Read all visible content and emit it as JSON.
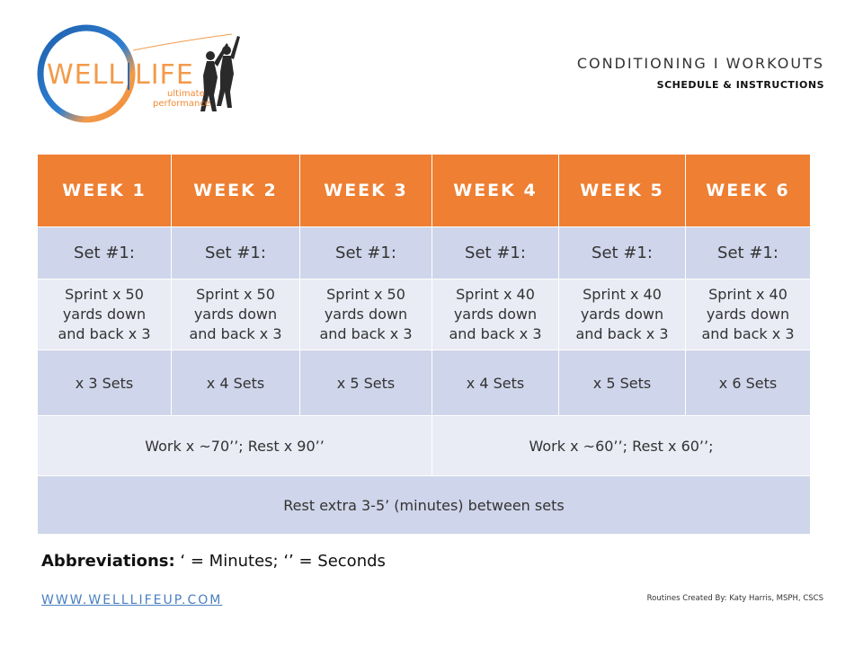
{
  "logo": {
    "word1": "WELL",
    "word2": "LIFE",
    "tag1": "ultimate",
    "tag2": "performance",
    "ring_colors": [
      "#1f5fae",
      "#f39a4a"
    ]
  },
  "header": {
    "title": "CONDITIONING I WORKOUTS",
    "subtitle": "SCHEDULE & INSTRUCTIONS"
  },
  "table": {
    "weeks": [
      "WEEK 1",
      "WEEK 2",
      "WEEK 3",
      "WEEK 4",
      "WEEK 5",
      "WEEK 6"
    ],
    "set_labels": [
      "Set #1:",
      "Set #1:",
      "Set #1:",
      "Set #1:",
      "Set #1:",
      "Set #1:"
    ],
    "sprints": [
      [
        "Sprint x 50",
        "yards down",
        "and back x 3"
      ],
      [
        "Sprint x 50",
        "yards down",
        "and back x 3"
      ],
      [
        "Sprint x 50",
        "yards down",
        "and back x 3"
      ],
      [
        "Sprint x 40",
        "yards down",
        "and back x 3"
      ],
      [
        "Sprint x 40",
        "yards down",
        "and back x 3"
      ],
      [
        "Sprint x 40",
        "yards down",
        "and back x 3"
      ]
    ],
    "sets": [
      "x 3 Sets",
      "x 4 Sets",
      "x 5 Sets",
      "x 4 Sets",
      "x 5 Sets",
      "x 6 Sets"
    ],
    "work_left": "Work x ~70’’; Rest x 90’’",
    "work_right": "Work x ~60’’; Rest x 60’’;",
    "rest_note": "Rest extra 3-5’ (minutes) between sets"
  },
  "footer": {
    "abbrev_label": "Abbreviations:",
    "abbrev_text": " ‘ = Minutes; ‘’ = Seconds",
    "website": "WWW.WELLLIFEUP.COM",
    "credit": "Routines Created By: Katy Harris, MSPH, CSCS"
  },
  "colors": {
    "header_orange": "#ee7f33",
    "row_dark": "#cfd5ea",
    "row_light": "#e9ebf5",
    "link_blue": "#4a7fc0"
  }
}
